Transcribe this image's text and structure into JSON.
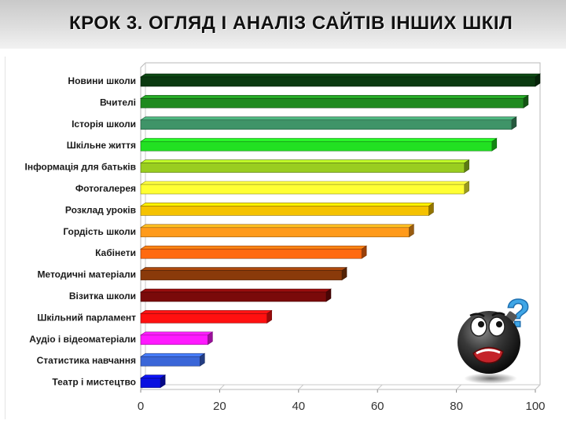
{
  "header": {
    "title": "КРОК 3. ОГЛЯД І АНАЛІЗ САЙТІВ ІНШИХ ШКІЛ"
  },
  "decoration": {
    "icon": "confused-bomb-smiley-icon"
  },
  "chart_data": {
    "type": "bar",
    "orientation": "horizontal",
    "title": "",
    "xlabel": "",
    "ylabel": "",
    "xlim": [
      0,
      100
    ],
    "xticks": [
      0,
      20,
      40,
      60,
      80,
      100
    ],
    "grid": false,
    "legend": "none",
    "style": "3d",
    "categories": [
      "Новини школи",
      "Вчителі",
      "Історія школи",
      "Шкільне життя",
      "Інформація для батьків",
      "Фотогалерея",
      "Розклад уроків",
      "Гордість школи",
      "Кабінети",
      "Методичні матеріали",
      "Візитка школи",
      "Шкільний парламент",
      "Аудіо і відеоматеріали",
      "Статистика навчання",
      "Театр і мистецтво"
    ],
    "values": [
      100,
      97,
      94,
      89,
      82,
      82,
      73,
      68,
      56,
      51,
      47,
      32,
      17,
      15,
      5
    ],
    "colors": [
      "#0b3a10",
      "#1f8a1f",
      "#3f9468",
      "#22e022",
      "#9acd20",
      "#ffff33",
      "#f5c200",
      "#ff9a1a",
      "#ff6a10",
      "#8a3a0a",
      "#7a0a0a",
      "#ff1010",
      "#ff19ff",
      "#3a66d8",
      "#0a10e0"
    ]
  }
}
